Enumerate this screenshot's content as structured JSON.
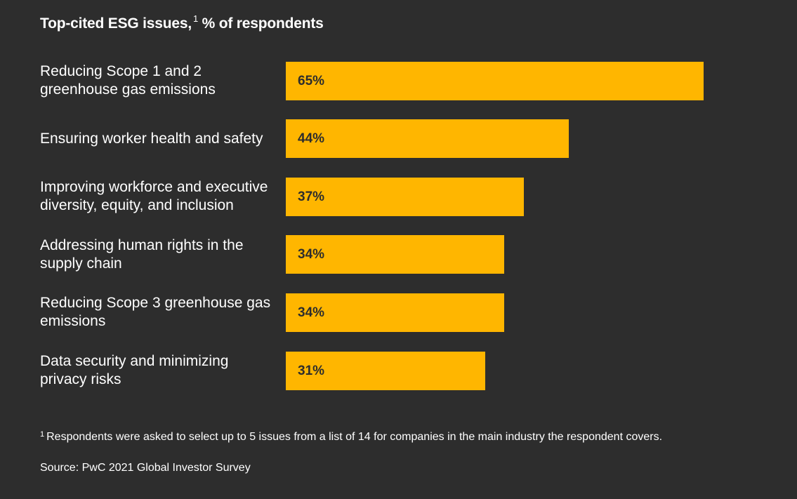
{
  "chart_data": {
    "type": "bar",
    "orientation": "horizontal",
    "title": "Top-cited ESG issues,",
    "title_superscript": "1",
    "title_suffix": " % of respondents",
    "categories": [
      "Reducing Scope 1 and 2 greenhouse gas emissions",
      "Ensuring worker health and safety",
      "Improving workforce and executive diversity, equity, and inclusion",
      "Addressing human rights in the supply chain",
      "Reducing Scope 3 greenhouse gas emissions",
      "Data security and minimizing privacy risks"
    ],
    "values": [
      65,
      44,
      37,
      34,
      34,
      31
    ],
    "data_labels": [
      "65%",
      "44%",
      "37%",
      "34%",
      "34%",
      "31%"
    ],
    "xlim": [
      0,
      100
    ],
    "unit": "%",
    "grid": false
  },
  "colors": {
    "background": "#2d2d2d",
    "bar": "#ffb600",
    "text": "#ffffff",
    "bar_label": "#2d2d2d"
  },
  "footnote": {
    "marker": "1",
    "text": "Respondents were asked to select up to 5 issues from a list of 14 for companies in the main industry the respondent covers."
  },
  "source": "Source: PwC 2021 Global Investor Survey"
}
